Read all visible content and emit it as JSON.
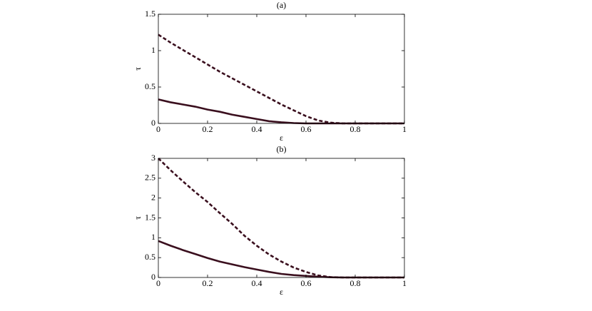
{
  "chart_data": [
    {
      "type": "line",
      "title": "(a)",
      "xlabel": "ε",
      "ylabel": "τ",
      "x": [
        0,
        0.05,
        0.1,
        0.15,
        0.2,
        0.25,
        0.3,
        0.35,
        0.4,
        0.45,
        0.5,
        0.55,
        0.6,
        0.65,
        0.7,
        0.75,
        0.8,
        0.85,
        0.9,
        0.95,
        1
      ],
      "series": [
        {
          "color": "#3a0f1e",
          "style": "dashed",
          "values": [
            1.22,
            1.11,
            1.01,
            0.91,
            0.81,
            0.71,
            0.62,
            0.53,
            0.44,
            0.35,
            0.26,
            0.18,
            0.1,
            0.04,
            0.01,
            0,
            0,
            0,
            0,
            0,
            0
          ]
        },
        {
          "color": "#3a0f1e",
          "style": "solid",
          "values": [
            0.33,
            0.29,
            0.26,
            0.23,
            0.19,
            0.16,
            0.12,
            0.09,
            0.06,
            0.03,
            0.015,
            0.005,
            0,
            0,
            0,
            0,
            0,
            0,
            0,
            0,
            0
          ]
        }
      ],
      "xlim": [
        0,
        1
      ],
      "xticks": [
        0,
        0.2,
        0.4,
        0.6,
        0.8,
        1
      ],
      "ylim": [
        0,
        1.5
      ],
      "yticks": [
        0,
        0.5,
        1,
        1.5
      ]
    },
    {
      "type": "line",
      "title": "(b)",
      "xlabel": "ε",
      "ylabel": "τ",
      "x": [
        0,
        0.05,
        0.1,
        0.15,
        0.2,
        0.25,
        0.3,
        0.35,
        0.4,
        0.45,
        0.5,
        0.55,
        0.6,
        0.65,
        0.7,
        0.75,
        0.8,
        0.85,
        0.9,
        0.95,
        1
      ],
      "series": [
        {
          "color": "#3a0f1e",
          "style": "dashed",
          "values": [
            3.0,
            2.7,
            2.42,
            2.15,
            1.9,
            1.62,
            1.35,
            1.05,
            0.8,
            0.58,
            0.4,
            0.25,
            0.14,
            0.05,
            0.01,
            0,
            0,
            0,
            0,
            0,
            0
          ]
        },
        {
          "color": "#3a0f1e",
          "style": "solid",
          "values": [
            0.92,
            0.8,
            0.69,
            0.59,
            0.49,
            0.4,
            0.33,
            0.26,
            0.2,
            0.14,
            0.09,
            0.06,
            0.04,
            0.02,
            0.005,
            0,
            0,
            0,
            0,
            0,
            0
          ]
        }
      ],
      "xlim": [
        0,
        1
      ],
      "xticks": [
        0,
        0.2,
        0.4,
        0.6,
        0.8,
        1
      ],
      "ylim": [
        0,
        3
      ],
      "yticks": [
        0,
        0.5,
        1,
        1.5,
        2,
        2.5,
        3
      ]
    }
  ]
}
